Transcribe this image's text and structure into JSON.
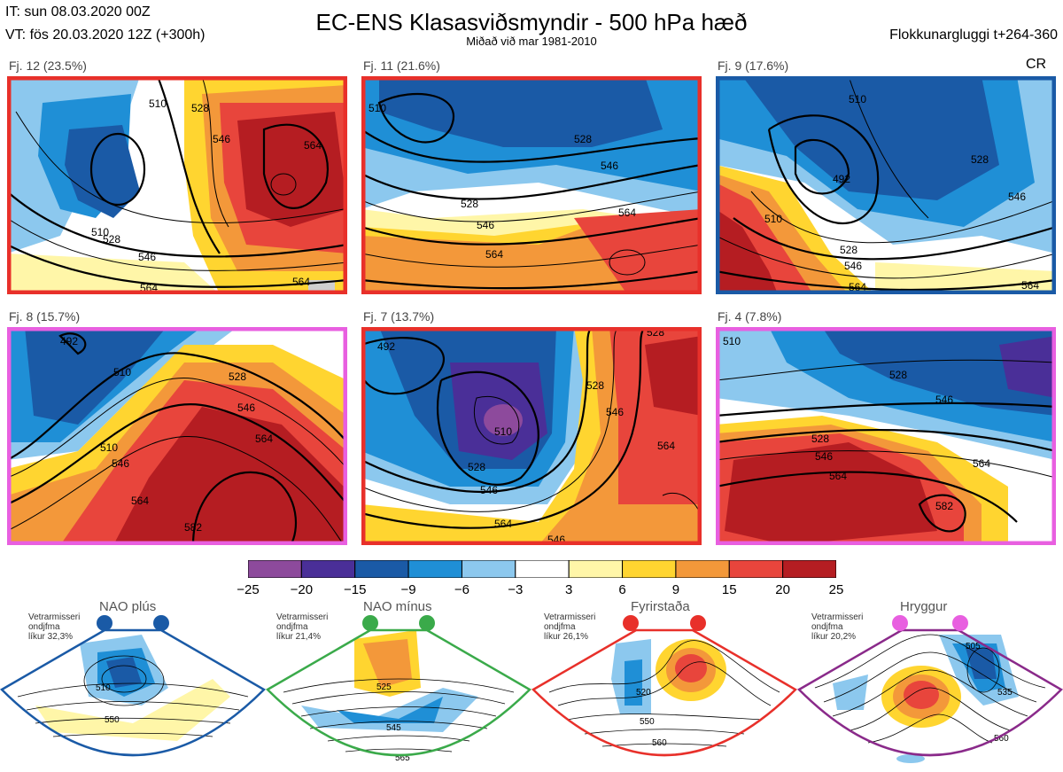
{
  "header": {
    "it_line": "IT: sun 08.03.2020 00Z",
    "vt_line": "VT: fös 20.03.2020 12Z  (+300h)",
    "title": "EC-ENS Klasasviðsmyndir - 500 hPa hæð",
    "subtitle": "Miðað við mar 1981-2010",
    "window": "Flokkunargluggi t+264-360"
  },
  "clusters": [
    {
      "label": "Fj. 12 (23.5%)",
      "frame": "#e8302a",
      "regime": "fyrirstada",
      "contours": [
        {
          "t": "510"
        },
        {
          "t": "528"
        },
        {
          "t": "546"
        },
        {
          "t": "564"
        },
        {
          "t": "564"
        },
        {
          "t": "510"
        },
        {
          "t": "528"
        },
        {
          "t": "546"
        },
        {
          "t": "564"
        }
      ]
    },
    {
      "label": "Fj. 11 (21.6%)",
      "frame": "#e8302a",
      "regime": "fyrirstada",
      "contours": [
        {
          "t": "510"
        },
        {
          "t": "528"
        },
        {
          "t": "546"
        },
        {
          "t": "564"
        },
        {
          "t": "528"
        },
        {
          "t": "546"
        },
        {
          "t": "564"
        }
      ]
    },
    {
      "label": "Fj. 9 (17.6%)",
      "frame": "#1a5aa6",
      "regime": "nao_plus",
      "corner": "CR",
      "contours": [
        {
          "t": "510"
        },
        {
          "t": "492"
        },
        {
          "t": "528"
        },
        {
          "t": "510"
        },
        {
          "t": "546"
        },
        {
          "t": "528"
        },
        {
          "t": "546"
        },
        {
          "t": "564"
        },
        {
          "t": "564"
        }
      ]
    },
    {
      "label": "Fj. 8 (15.7%)",
      "frame": "#e85fe0",
      "regime": "hryggur",
      "contours": [
        {
          "t": "492"
        },
        {
          "t": "510"
        },
        {
          "t": "528"
        },
        {
          "t": "546"
        },
        {
          "t": "564"
        },
        {
          "t": "510"
        },
        {
          "t": "546"
        },
        {
          "t": "564"
        },
        {
          "t": "582"
        }
      ]
    },
    {
      "label": "Fj. 7 (13.7%)",
      "frame": "#e8302a",
      "regime": "fyrirstada",
      "contours": [
        {
          "t": "492"
        },
        {
          "t": "510"
        },
        {
          "t": "528"
        },
        {
          "t": "546"
        },
        {
          "t": "528"
        },
        {
          "t": "546"
        },
        {
          "t": "564"
        },
        {
          "t": "564"
        },
        {
          "t": "546"
        },
        {
          "t": "528"
        }
      ]
    },
    {
      "label": "Fj. 4 (7.8%)",
      "frame": "#e85fe0",
      "regime": "hryggur",
      "contours": [
        {
          "t": "510"
        },
        {
          "t": "528"
        },
        {
          "t": "546"
        },
        {
          "t": "528"
        },
        {
          "t": "546"
        },
        {
          "t": "564"
        },
        {
          "t": "582"
        },
        {
          "t": "564"
        }
      ]
    }
  ],
  "colorbar": {
    "ticks": [
      "−25",
      "−20",
      "−15",
      "−9",
      "−6",
      "−3",
      "3",
      "6",
      "9",
      "15",
      "20",
      "25"
    ],
    "colors": [
      "#8d4a9c",
      "#4a2f98",
      "#1a5aa6",
      "#1f8fd6",
      "#8cc8ee",
      "#ffffff",
      "#fff6a8",
      "#ffd530",
      "#f3983a",
      "#e8453c",
      "#b51d22"
    ]
  },
  "regimes": [
    {
      "key": "nao_plus",
      "title": "NAO plús",
      "note1": "Vetrarmisseri",
      "note2": "ondjfma",
      "note3": "líkur 32,3%",
      "border": "#1a5aa6",
      "dot": "#1a5aa6",
      "labels": [
        "510",
        "550"
      ]
    },
    {
      "key": "nao_minus",
      "title": "NAO mínus",
      "note1": "Vetrarmisseri",
      "note2": "ondjfma",
      "note3": "líkur 21,4%",
      "border": "#3aaa4a",
      "dot": "#3aaa4a",
      "labels": [
        "525",
        "545",
        "565"
      ]
    },
    {
      "key": "fyrirstada",
      "title": "Fyrirstaða",
      "note1": "Vetrarmisseri",
      "note2": "ondjfma",
      "note3": "líkur 26,1%",
      "border": "#e8302a",
      "dot": "#e8302a",
      "labels": [
        "520",
        "550",
        "560"
      ]
    },
    {
      "key": "hryggur",
      "title": "Hryggur",
      "note1": "Vetrarmisseri",
      "note2": "ondjfma",
      "note3": "líkur 20,2%",
      "border": "#8a2a8a",
      "dot": "#e85fe0",
      "labels": [
        "505",
        "535",
        "560"
      ]
    }
  ]
}
